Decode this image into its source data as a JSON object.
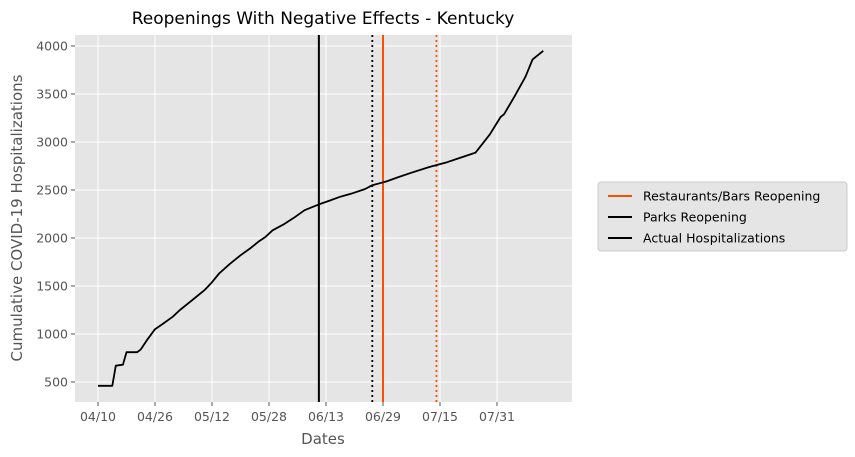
{
  "chart_data": {
    "type": "line",
    "title": "Reopenings With Negative Effects - Kentucky",
    "xlabel": "Dates",
    "ylabel": "Cumulative COVID-19 Hospitalizations",
    "x_ticks": [
      "04/10",
      "04/26",
      "05/12",
      "05/28",
      "06/13",
      "06/29",
      "07/15",
      "07/31"
    ],
    "y_ticks": [
      500,
      1000,
      1500,
      2000,
      2500,
      3000,
      3500,
      4000
    ],
    "ylim": [
      300,
      4130
    ],
    "grid": true,
    "legend_position": "right",
    "legend": [
      {
        "label": "Restaurants/Bars Reopening",
        "color": "#fc4f00"
      },
      {
        "label": "Parks Reopening",
        "color": "#000000"
      },
      {
        "label": "Actual Hospitalizations",
        "color": "#000000"
      }
    ],
    "vertical_lines": [
      {
        "date": "06/11",
        "color": "#000000",
        "style": "solid",
        "series": "Parks Reopening"
      },
      {
        "date": "06/26",
        "color": "#000000",
        "style": "dotted",
        "series": "Parks Reopening"
      },
      {
        "date": "06/29",
        "color": "#fc4f00",
        "style": "solid",
        "series": "Restaurants/Bars Reopening"
      },
      {
        "date": "07/14",
        "color": "#fc4f00",
        "style": "dotted",
        "series": "Restaurants/Bars Reopening"
      }
    ],
    "series": [
      {
        "name": "Actual Hospitalizations",
        "color": "#000000",
        "points": [
          [
            "04/10",
            460
          ],
          [
            "04/14",
            460
          ],
          [
            "04/15",
            670
          ],
          [
            "04/17",
            680
          ],
          [
            "04/18",
            810
          ],
          [
            "04/21",
            810
          ],
          [
            "04/22",
            840
          ],
          [
            "04/24",
            950
          ],
          [
            "04/26",
            1050
          ],
          [
            "04/28",
            1100
          ],
          [
            "05/01",
            1180
          ],
          [
            "05/03",
            1250
          ],
          [
            "05/06",
            1340
          ],
          [
            "05/07",
            1370
          ],
          [
            "05/10",
            1460
          ],
          [
            "05/12",
            1540
          ],
          [
            "05/14",
            1630
          ],
          [
            "05/17",
            1730
          ],
          [
            "05/20",
            1820
          ],
          [
            "05/23",
            1900
          ],
          [
            "05/25",
            1960
          ],
          [
            "05/27",
            2010
          ],
          [
            "05/29",
            2080
          ],
          [
            "06/01",
            2140
          ],
          [
            "06/04",
            2210
          ],
          [
            "06/07",
            2290
          ],
          [
            "06/11",
            2350
          ],
          [
            "06/14",
            2390
          ],
          [
            "06/17",
            2430
          ],
          [
            "06/20",
            2460
          ],
          [
            "06/24",
            2510
          ],
          [
            "06/26",
            2550
          ],
          [
            "06/30",
            2590
          ],
          [
            "07/03",
            2630
          ],
          [
            "07/07",
            2680
          ],
          [
            "07/12",
            2740
          ],
          [
            "07/17",
            2790
          ],
          [
            "07/21",
            2840
          ],
          [
            "07/25",
            2890
          ],
          [
            "07/29",
            3080
          ],
          [
            "08/01",
            3260
          ],
          [
            "08/02",
            3290
          ],
          [
            "08/05",
            3480
          ],
          [
            "08/08",
            3680
          ],
          [
            "08/10",
            3860
          ],
          [
            "08/13",
            3950
          ]
        ]
      }
    ]
  }
}
